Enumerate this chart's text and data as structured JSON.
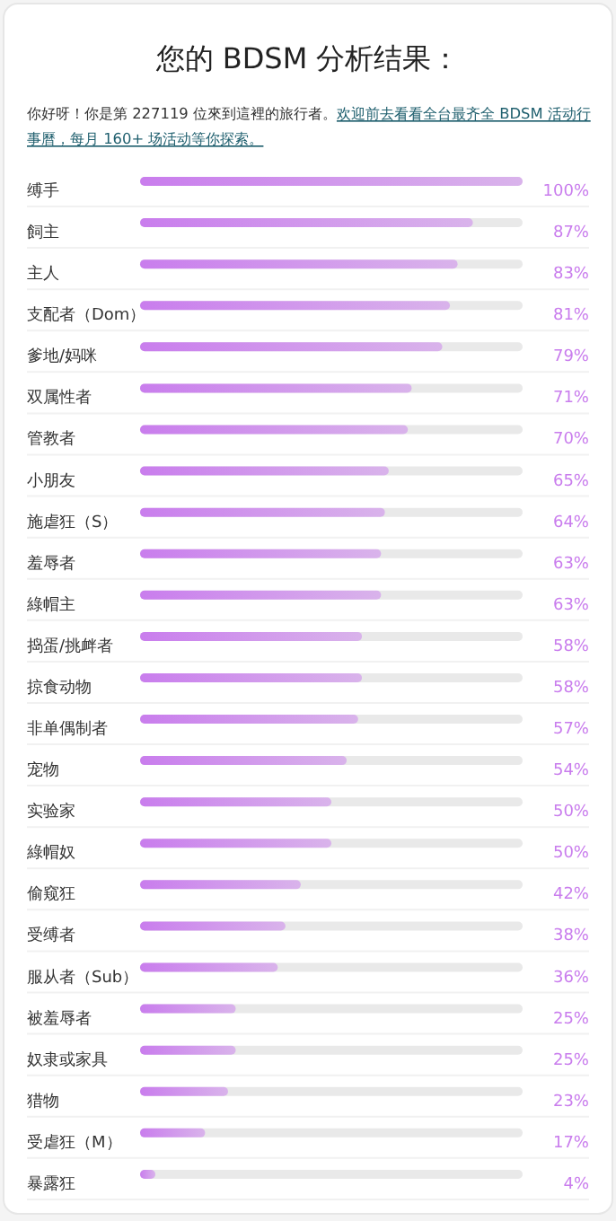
{
  "chart_data": {
    "type": "bar",
    "orientation": "horizontal",
    "title": "您的 BDSM 分析结果：",
    "annotations": [
      "你好呀！你是第 227119 位來到這裡的旅行者。",
      "欢迎前去看看全台最齐全 BDSM 活动行事曆，每月 160+ 场活动等你探索。"
    ],
    "categories": [
      "缚手",
      "飼主",
      "主人",
      "支配者（Dom）",
      "爹地/妈咪",
      "双属性者",
      "管教者",
      "小朋友",
      "施虐狂（S）",
      "羞辱者",
      "綠帽主",
      "捣蛋/挑衅者",
      "掠食动物",
      "非单偶制者",
      "宠物",
      "实验家",
      "綠帽奴",
      "偷窥狂",
      "受缚者",
      "服从者（Sub）",
      "被羞辱者",
      "奴隶或家具",
      "猎物",
      "受虐狂（M）",
      "暴露狂"
    ],
    "values": [
      100,
      87,
      83,
      81,
      79,
      71,
      70,
      65,
      64,
      63,
      63,
      58,
      58,
      57,
      54,
      50,
      50,
      42,
      38,
      36,
      25,
      25,
      23,
      17,
      4
    ],
    "value_labels": [
      "100%",
      "87%",
      "83%",
      "81%",
      "79%",
      "71%",
      "70%",
      "65%",
      "64%",
      "63%",
      "63%",
      "58%",
      "58%",
      "57%",
      "54%",
      "50%",
      "50%",
      "42%",
      "38%",
      "36%",
      "25%",
      "25%",
      "23%",
      "17%",
      "4%"
    ],
    "color": "#c97ded"
  }
}
